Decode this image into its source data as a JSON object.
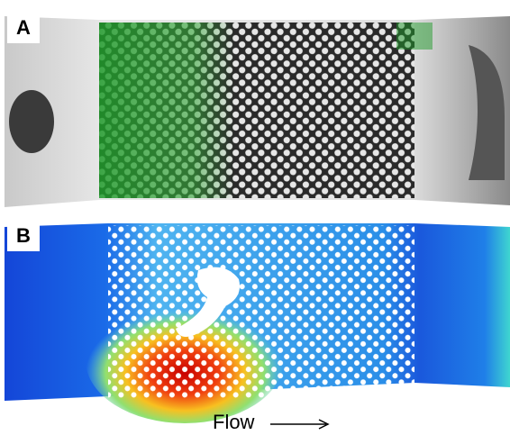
{
  "panels": [
    {
      "label": "A"
    },
    {
      "label": "B"
    }
  ],
  "flow_label": "Flow"
}
